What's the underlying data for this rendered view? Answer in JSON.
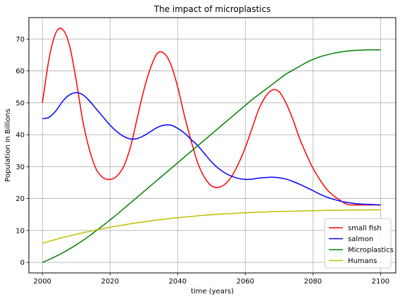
{
  "chart_data": {
    "type": "line",
    "title": "The impact of microplastics",
    "xlabel": "time (years)",
    "ylabel": "Population in Billions",
    "xlim": [
      1996,
      2104.5
    ],
    "ylim": [
      -3.3,
      76.7
    ],
    "xticks": [
      2000,
      2020,
      2040,
      2060,
      2080,
      2100
    ],
    "yticks": [
      0,
      10,
      20,
      30,
      40,
      50,
      60,
      70
    ],
    "grid": true,
    "legend_position": "lower-right",
    "x": [
      2000,
      2002,
      2004,
      2006,
      2008,
      2010,
      2012,
      2014,
      2016,
      2018,
      2020,
      2022,
      2024,
      2026,
      2028,
      2030,
      2032,
      2034,
      2036,
      2038,
      2040,
      2042,
      2044,
      2046,
      2048,
      2050,
      2052,
      2054,
      2056,
      2058,
      2060,
      2062,
      2064,
      2066,
      2068,
      2070,
      2072,
      2074,
      2076,
      2078,
      2080,
      2082,
      2084,
      2086,
      2088,
      2090,
      2092,
      2094,
      2096,
      2098,
      2100
    ],
    "series": [
      {
        "name": "small fish",
        "color": "#ff0000",
        "values": [
          50,
          64,
          72,
          73,
          68,
          57,
          44,
          35,
          29,
          26.5,
          26,
          27,
          30,
          36,
          45,
          54,
          61,
          65.5,
          65.5,
          62,
          55,
          46,
          38,
          31,
          26.5,
          24,
          23.5,
          24.5,
          27,
          31,
          36,
          42,
          48,
          52,
          54,
          53.5,
          50,
          45,
          39,
          34,
          29.5,
          26,
          23,
          21,
          19.5,
          18.2,
          18,
          18,
          18,
          18,
          18
        ]
      },
      {
        "name": "salmon",
        "color": "#0000ff",
        "values": [
          45,
          45.5,
          47.5,
          50.5,
          52.5,
          53.2,
          52.5,
          50.5,
          48,
          45.5,
          43,
          41,
          39.5,
          38.7,
          38.8,
          39.7,
          41,
          42.3,
          43,
          43,
          42,
          40.5,
          38.5,
          36.5,
          34,
          31.5,
          29.5,
          28,
          27,
          26.3,
          26,
          26.1,
          26.4,
          26.6,
          26.7,
          26.5,
          26.1,
          25.4,
          24.5,
          23.5,
          22.5,
          21.4,
          20.5,
          19.8,
          19.2,
          18.8,
          18.5,
          18.3,
          18.2,
          18.1,
          18
        ]
      },
      {
        "name": "Microplastics",
        "color": "#008000",
        "values": [
          0,
          0.9,
          1.9,
          3.0,
          4.2,
          5.5,
          6.9,
          8.4,
          10.0,
          11.6,
          13.3,
          15.0,
          16.8,
          18.6,
          20.4,
          22.2,
          24.0,
          25.8,
          27.6,
          29.4,
          31.2,
          33.0,
          34.8,
          36.6,
          38.4,
          40.2,
          42.0,
          43.8,
          45.6,
          47.4,
          49.2,
          51.0,
          52.6,
          54.2,
          55.8,
          57.4,
          59.0,
          60.2,
          61.4,
          62.6,
          63.6,
          64.4,
          65.0,
          65.5,
          65.9,
          66.2,
          66.4,
          66.5,
          66.6,
          66.6,
          66.6
        ]
      },
      {
        "name": "Humans",
        "color": "#bfbf00",
        "values": [
          6,
          6.6,
          7.2,
          7.8,
          8.3,
          8.8,
          9.3,
          9.7,
          10.2,
          10.6,
          11.0,
          11.4,
          11.7,
          12.1,
          12.4,
          12.7,
          13.0,
          13.3,
          13.5,
          13.8,
          14.0,
          14.2,
          14.4,
          14.6,
          14.8,
          14.9,
          15.1,
          15.2,
          15.3,
          15.45,
          15.55,
          15.65,
          15.75,
          15.8,
          15.9,
          15.95,
          16.0,
          16.05,
          16.1,
          16.15,
          16.2,
          16.25,
          16.3,
          16.32,
          16.35,
          16.38,
          16.4,
          16.42,
          16.44,
          16.46,
          16.48
        ]
      }
    ]
  }
}
